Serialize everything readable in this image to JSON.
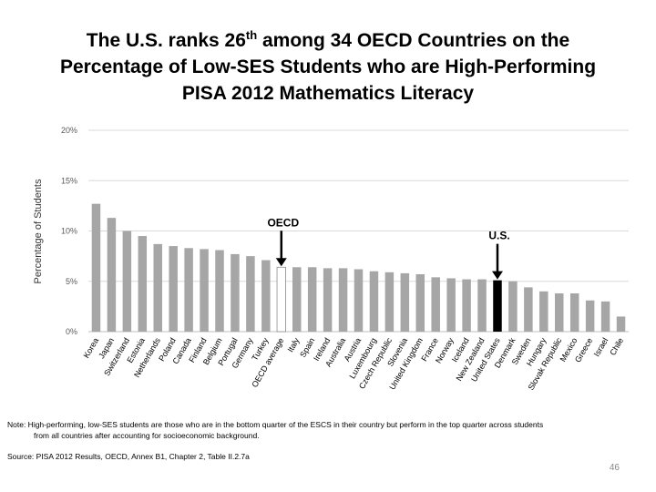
{
  "slide": {
    "title_part1": "The U.S. ranks 26",
    "title_sup": "th",
    "title_part2": " among 34 OECD Countries on the",
    "title_line2": "Percentage of Low-SES Students who are High-Performing",
    "title_line3": "PISA 2012 Mathematics Literacy",
    "note_line1": "Note: High-performing, low-SES students are those who are in the bottom quarter of the ESCS in their country but perform in the top quarter across students",
    "note_line2": "from all countries after accounting for socioeconomic background.",
    "source": "Source: PISA 2012 Results, OECD, Annex B1, Chapter 2, Table II.2.7a",
    "page_number": "46"
  },
  "colors": {
    "bar": "#a6a6a6",
    "oecd_bar": "#ffffff",
    "us_bar": "#000000",
    "grid": "#d9d9d9",
    "axis_text": "#595959"
  },
  "chart_data": {
    "type": "bar",
    "title": "",
    "ylabel": "Percentage of Students",
    "xlabel": "",
    "ylim": [
      0,
      20
    ],
    "yticks": [
      0,
      5,
      10,
      15,
      20
    ],
    "ytick_labels": [
      "0%",
      "5%",
      "10%",
      "15%",
      "20%"
    ],
    "grid": true,
    "categories": [
      "Korea",
      "Japan",
      "Switzerland",
      "Estonia",
      "Netherlands",
      "Poland",
      "Canada",
      "Finland",
      "Belgium",
      "Portugal",
      "Germany",
      "Turkey",
      "OECD average",
      "Italy",
      "Spain",
      "Ireland",
      "Australia",
      "Austria",
      "Luxembourg",
      "Czech Republic",
      "Slovenia",
      "United Kingdom",
      "France",
      "Norway",
      "Iceland",
      "New Zealand",
      "United States",
      "Denmark",
      "Sweden",
      "Hungary",
      "Slovak Republic",
      "Mexico",
      "Greece",
      "Israel",
      "Chile"
    ],
    "values": [
      12.7,
      11.3,
      10.0,
      9.5,
      8.7,
      8.5,
      8.3,
      8.2,
      8.1,
      7.7,
      7.5,
      7.1,
      6.4,
      6.4,
      6.4,
      6.3,
      6.3,
      6.2,
      6.0,
      5.9,
      5.8,
      5.7,
      5.4,
      5.3,
      5.2,
      5.2,
      5.1,
      5.0,
      4.4,
      4.0,
      3.8,
      3.8,
      3.1,
      3.0,
      1.5
    ],
    "highlight": {
      "OECD average": "oecd",
      "United States": "us"
    },
    "annotations": [
      {
        "label": "OECD",
        "category": "OECD average"
      },
      {
        "label": "U.S.",
        "category": "United States"
      }
    ]
  }
}
